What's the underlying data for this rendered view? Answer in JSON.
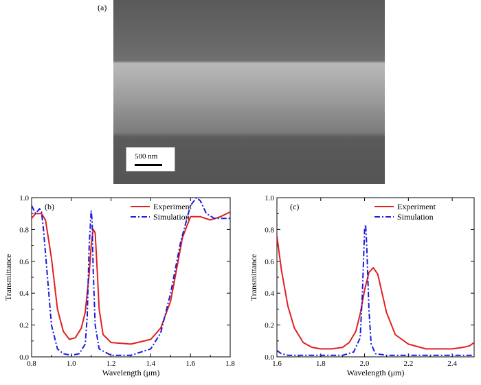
{
  "panels": {
    "a": {
      "label": "(a)",
      "scale_bar": "500 nm"
    }
  },
  "chart_data": [
    {
      "type": "line",
      "panel_label": "(b)",
      "xlabel": "Wavelength (μm)",
      "ylabel": "Transmittance",
      "xlim": [
        0.8,
        1.8
      ],
      "ylim": [
        0.0,
        1.0
      ],
      "xticks": [
        "0.8",
        "1.0",
        "1.2",
        "1.4",
        "1.6",
        "1.8"
      ],
      "yticks": [
        "0.0",
        "0.2",
        "0.4",
        "0.6",
        "0.8",
        "1.0"
      ],
      "legend_position": "top-right",
      "series": [
        {
          "name": "Experiment",
          "color": "#e02020",
          "style": "solid",
          "x": [
            0.8,
            0.82,
            0.85,
            0.87,
            0.9,
            0.93,
            0.96,
            0.99,
            1.02,
            1.05,
            1.07,
            1.09,
            1.1,
            1.11,
            1.12,
            1.13,
            1.14,
            1.16,
            1.2,
            1.3,
            1.4,
            1.45,
            1.5,
            1.53,
            1.56,
            1.6,
            1.65,
            1.7,
            1.75,
            1.8
          ],
          "y": [
            0.87,
            0.9,
            0.9,
            0.86,
            0.62,
            0.3,
            0.16,
            0.11,
            0.12,
            0.18,
            0.28,
            0.52,
            0.7,
            0.8,
            0.78,
            0.55,
            0.3,
            0.14,
            0.09,
            0.08,
            0.11,
            0.18,
            0.35,
            0.55,
            0.75,
            0.88,
            0.88,
            0.86,
            0.88,
            0.91
          ]
        },
        {
          "name": "Simulation",
          "color": "#1a1adf",
          "style": "dashdot",
          "x": [
            0.8,
            0.82,
            0.84,
            0.85,
            0.86,
            0.88,
            0.9,
            0.93,
            0.96,
            1.0,
            1.04,
            1.07,
            1.08,
            1.09,
            1.1,
            1.105,
            1.11,
            1.12,
            1.14,
            1.2,
            1.3,
            1.4,
            1.45,
            1.5,
            1.55,
            1.6,
            1.63,
            1.65,
            1.68,
            1.72,
            1.75,
            1.8
          ],
          "y": [
            0.95,
            0.9,
            0.93,
            0.91,
            0.8,
            0.5,
            0.2,
            0.05,
            0.02,
            0.01,
            0.02,
            0.08,
            0.25,
            0.7,
            0.92,
            0.85,
            0.55,
            0.2,
            0.05,
            0.01,
            0.01,
            0.05,
            0.15,
            0.4,
            0.72,
            0.95,
            1.0,
            0.98,
            0.9,
            0.87,
            0.87,
            0.87
          ]
        }
      ]
    },
    {
      "type": "line",
      "panel_label": "(c)",
      "xlabel": "Wavelength (μm)",
      "ylabel": "Transmittance",
      "xlim": [
        1.6,
        2.5
      ],
      "ylim": [
        0.0,
        1.0
      ],
      "xticks": [
        "1.6",
        "1.8",
        "2.0",
        "2.2",
        "2.4"
      ],
      "yticks": [
        "0.0",
        "0.2",
        "0.4",
        "0.6",
        "0.8",
        "1.0"
      ],
      "legend_position": "top-right",
      "series": [
        {
          "name": "Experiment",
          "color": "#e02020",
          "style": "solid",
          "x": [
            1.6,
            1.62,
            1.65,
            1.68,
            1.72,
            1.76,
            1.8,
            1.85,
            1.9,
            1.93,
            1.96,
            1.98,
            2.0,
            2.02,
            2.04,
            2.06,
            2.08,
            2.1,
            2.14,
            2.2,
            2.28,
            2.35,
            2.4,
            2.45,
            2.48,
            2.5
          ],
          "y": [
            0.76,
            0.55,
            0.32,
            0.18,
            0.09,
            0.06,
            0.05,
            0.05,
            0.06,
            0.09,
            0.16,
            0.27,
            0.42,
            0.53,
            0.56,
            0.52,
            0.4,
            0.28,
            0.14,
            0.08,
            0.05,
            0.05,
            0.05,
            0.06,
            0.07,
            0.09
          ]
        },
        {
          "name": "Simulation",
          "color": "#1a1adf",
          "style": "dashdot",
          "x": [
            1.6,
            1.62,
            1.65,
            1.7,
            1.8,
            1.9,
            1.95,
            1.98,
            1.99,
            2.0,
            2.005,
            2.01,
            2.02,
            2.03,
            2.05,
            2.1,
            2.2,
            2.3,
            2.4,
            2.5
          ],
          "y": [
            0.04,
            0.02,
            0.01,
            0.01,
            0.01,
            0.01,
            0.03,
            0.12,
            0.4,
            0.8,
            0.83,
            0.7,
            0.3,
            0.08,
            0.02,
            0.01,
            0.01,
            0.01,
            0.01,
            0.01
          ]
        }
      ]
    }
  ]
}
